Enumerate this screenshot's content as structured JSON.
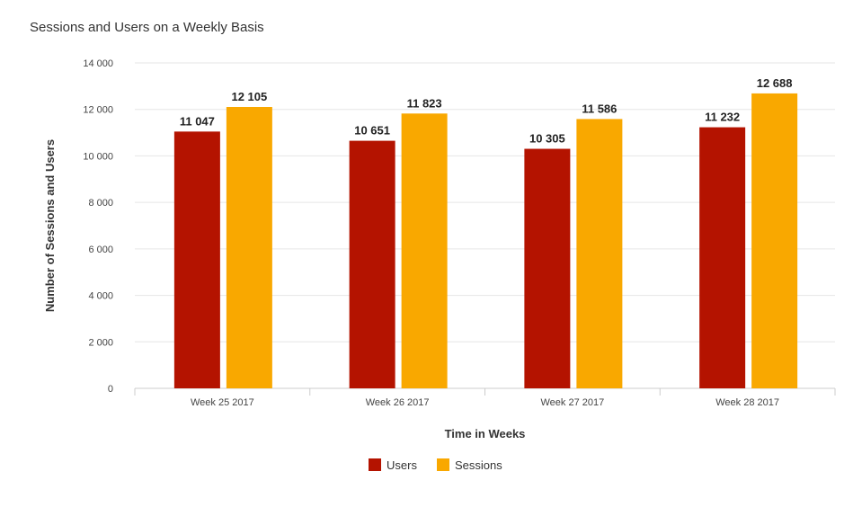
{
  "chart_data": {
    "type": "bar",
    "title": "Sessions and Users on a Weekly Basis",
    "xlabel": "Time in Weeks",
    "ylabel": "Number of Sessions and Users",
    "categories": [
      "Week 25 2017",
      "Week 26 2017",
      "Week 27 2017",
      "Week 28 2017"
    ],
    "series": [
      {
        "name": "Users",
        "color": "#b41300",
        "values": [
          11047,
          10651,
          10305,
          11232
        ],
        "labels": [
          "11 047",
          "10 651",
          "10 305",
          "11 232"
        ]
      },
      {
        "name": "Sessions",
        "color": "#f9a800",
        "values": [
          12105,
          11823,
          11586,
          12688
        ],
        "labels": [
          "12 105",
          "11 823",
          "11 586",
          "12 688"
        ]
      }
    ],
    "ylim": [
      0,
      14000
    ],
    "yticks": [
      0,
      2000,
      4000,
      6000,
      8000,
      10000,
      12000,
      14000
    ],
    "ytick_labels": [
      "0",
      "2 000",
      "4 000",
      "6 000",
      "8 000",
      "10 000",
      "12 000",
      "14 000"
    ],
    "grid": true,
    "legend_position": "bottom-center"
  }
}
